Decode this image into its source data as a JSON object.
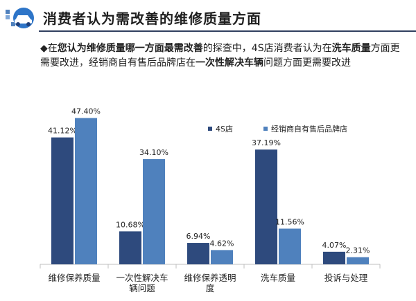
{
  "slide": {
    "title": "消费者认为需改善的维修质量方面",
    "bullet_symbol": "◆",
    "desc": {
      "p1": "在",
      "b1": "您认为维修质量哪一方面最需改善",
      "p2": "的探查中，4S店消费者认为在",
      "b2": "洗车质量",
      "p3": "方面更需要改进，经销商自有售后品牌店在",
      "b3": "一次性解决车辆",
      "p4": "问题方面更需要改进"
    }
  },
  "colors": {
    "series1": "#2e4a7d",
    "series2": "#4f81bd",
    "rule": "#2f3f5f",
    "axis": "#bfbfbf",
    "text": "#222222"
  },
  "chart_data": {
    "type": "bar",
    "categories": [
      "维修保养质量",
      "一次性解决车辆问题",
      "维修保养透明度",
      "洗车质量",
      "投诉与处理"
    ],
    "category_lines": [
      [
        "维修保养质量"
      ],
      [
        "一次性解决车",
        "辆问题"
      ],
      [
        "维修保养透明",
        "度"
      ],
      [
        "洗车质量"
      ],
      [
        "投诉与处理"
      ]
    ],
    "series": [
      {
        "name": "4S店",
        "values": [
          41.12,
          10.68,
          6.94,
          37.19,
          4.07
        ],
        "labels": [
          "41.12%",
          "10.68%",
          "6.94%",
          "37.19%",
          "4.07%"
        ]
      },
      {
        "name": "经销商自有售后品牌店",
        "values": [
          47.4,
          34.1,
          4.62,
          11.56,
          2.31
        ],
        "labels": [
          "47.40%",
          "34.10%",
          "4.62%",
          "11.56%",
          "2.31%"
        ]
      }
    ],
    "ylim": [
      0,
      50
    ],
    "grid": false,
    "legend_position": "top-right"
  }
}
